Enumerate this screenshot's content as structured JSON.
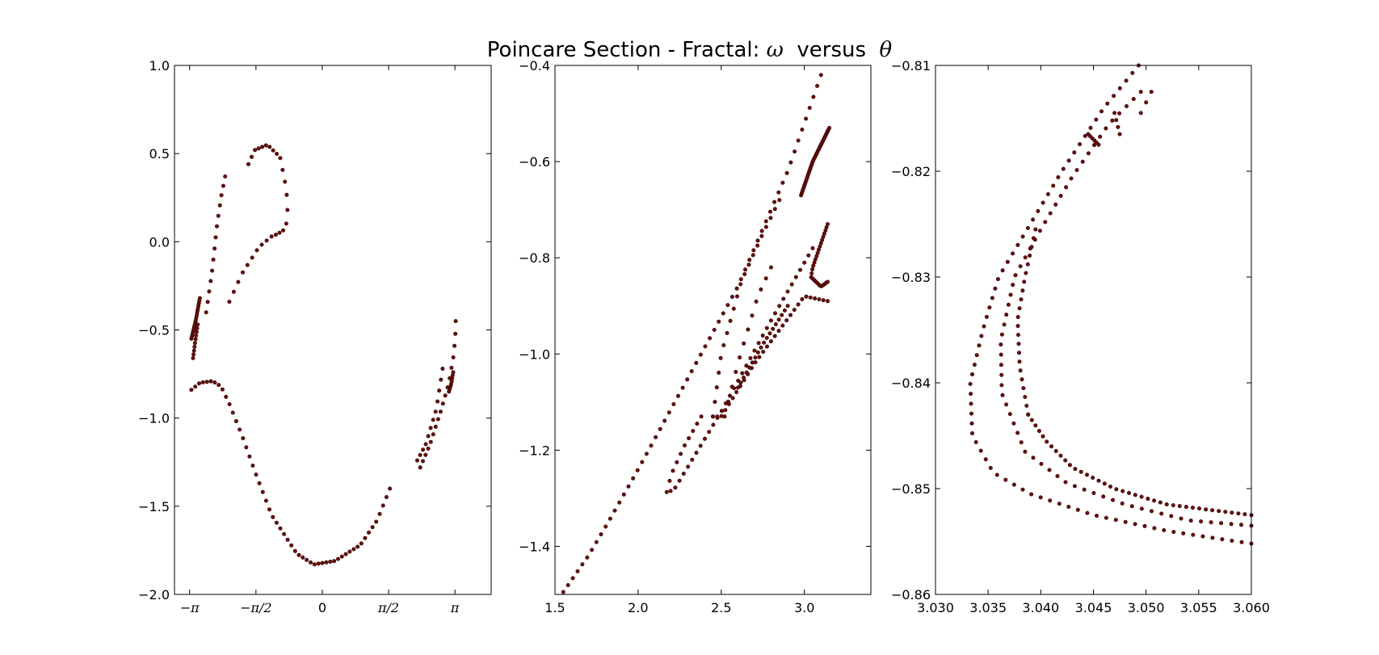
{
  "title": {
    "prefix": "Poincare Section - Fractal: ",
    "omega": "ω",
    "middle": "  versus  ",
    "theta": "θ"
  },
  "colors": {
    "marker_fill": "#6b0f0a",
    "marker_edge": "#2a0000",
    "axes": "#000000"
  },
  "chart_data": [
    {
      "type": "scatter",
      "xlim": [
        -3.5,
        4.0
      ],
      "ylim": [
        -2.0,
        1.0
      ],
      "xticks": [
        {
          "value": -3.14159,
          "label": "−π"
        },
        {
          "value": -1.5708,
          "label": "−π/2"
        },
        {
          "value": 0,
          "label": "0"
        },
        {
          "value": 1.5708,
          "label": "π/2"
        },
        {
          "value": 3.14159,
          "label": "π"
        }
      ],
      "yticks": [
        {
          "value": 1.0,
          "label": "1.0"
        },
        {
          "value": 0.5,
          "label": "0.5"
        },
        {
          "value": 0.0,
          "label": "0.0"
        },
        {
          "value": -0.5,
          "label": "−0.5"
        },
        {
          "value": -1.0,
          "label": "−1.0"
        },
        {
          "value": -1.5,
          "label": "−1.5"
        },
        {
          "value": -2.0,
          "label": "−2.0"
        }
      ],
      "polylines": [
        {
          "n": 55,
          "points": [
            [
              -3.1,
              -0.84
            ],
            [
              -2.9,
              -0.8
            ],
            [
              -2.6,
              -0.79
            ],
            [
              -2.4,
              -0.82
            ],
            [
              -2.2,
              -0.92
            ],
            [
              -1.9,
              -1.1
            ],
            [
              -1.6,
              -1.3
            ],
            [
              -1.2,
              -1.55
            ],
            [
              -0.6,
              -1.77
            ],
            [
              -0.2,
              -1.83
            ],
            [
              0.3,
              -1.81
            ],
            [
              0.9,
              -1.72
            ],
            [
              1.3,
              -1.58
            ],
            [
              1.6,
              -1.4
            ]
          ]
        },
        {
          "n": 18,
          "points": [
            [
              -3.1,
              -0.55
            ],
            [
              -3.0,
              -0.45
            ],
            [
              -2.9,
              -0.32
            ]
          ]
        },
        {
          "n": 14,
          "points": [
            [
              -2.75,
              -0.4
            ],
            [
              -2.6,
              -0.15
            ],
            [
              -2.5,
              0.08
            ],
            [
              -2.4,
              0.25
            ],
            [
              -2.3,
              0.37
            ]
          ]
        },
        {
          "n": 18,
          "points": [
            [
              -1.75,
              0.44
            ],
            [
              -1.6,
              0.52
            ],
            [
              -1.3,
              0.55
            ],
            [
              -1.0,
              0.48
            ],
            [
              -0.85,
              0.3
            ],
            [
              -0.82,
              0.15
            ],
            [
              -0.86,
              0.09
            ],
            [
              -0.94,
              0.06
            ],
            [
              -1.1,
              0.04
            ]
          ]
        },
        {
          "n": 10,
          "points": [
            [
              -1.2,
              0.03
            ],
            [
              -1.5,
              -0.03
            ],
            [
              -1.9,
              -0.18
            ],
            [
              -2.2,
              -0.34
            ]
          ]
        },
        {
          "n": 10,
          "points": [
            [
              -3.06,
              -0.66
            ],
            [
              -3.0,
              -0.55
            ],
            [
              -2.95,
              -0.47
            ]
          ]
        },
        {
          "n": 12,
          "points": [
            [
              2.25,
              -1.24
            ],
            [
              2.45,
              -1.15
            ],
            [
              2.7,
              -0.95
            ],
            [
              2.85,
              -0.72
            ]
          ]
        },
        {
          "n": 18,
          "points": [
            [
              2.32,
              -1.28
            ],
            [
              2.55,
              -1.15
            ],
            [
              2.82,
              -0.95
            ],
            [
              3.0,
              -0.8
            ],
            [
              3.1,
              -0.66
            ],
            [
              3.15,
              -0.55
            ],
            [
              3.16,
              -0.45
            ]
          ]
        },
        {
          "n": 8,
          "points": [
            [
              3.0,
              -0.85
            ],
            [
              3.06,
              -0.8
            ],
            [
              3.1,
              -0.74
            ]
          ]
        }
      ]
    },
    {
      "type": "scatter",
      "xlim": [
        1.5,
        3.4
      ],
      "ylim": [
        -1.5,
        -0.4
      ],
      "xticks": [
        {
          "value": 1.5,
          "label": "1.5"
        },
        {
          "value": 2.0,
          "label": "2.0"
        },
        {
          "value": 2.5,
          "label": "2.5"
        },
        {
          "value": 3.0,
          "label": "3.0"
        }
      ],
      "yticks": [
        {
          "value": -0.4,
          "label": "−0.4"
        },
        {
          "value": -0.6,
          "label": "−0.6"
        },
        {
          "value": -0.8,
          "label": "−0.8"
        },
        {
          "value": -1.0,
          "label": "−1.0"
        },
        {
          "value": -1.2,
          "label": "−1.2"
        },
        {
          "value": -1.4,
          "label": "−1.4"
        }
      ],
      "polylines": [
        {
          "n": 60,
          "points": [
            [
              1.55,
              -1.495
            ],
            [
              1.7,
              -1.42
            ],
            [
              1.82,
              -1.35
            ],
            [
              2.0,
              -1.24
            ],
            [
              2.3,
              -1.05
            ],
            [
              2.6,
              -0.86
            ],
            [
              2.9,
              -0.62
            ],
            [
              3.1,
              -0.42
            ]
          ]
        },
        {
          "n": 45,
          "points": [
            [
              2.38,
              -1.13
            ],
            [
              2.28,
              -1.19
            ],
            [
              2.2,
              -1.25
            ],
            [
              2.17,
              -1.29
            ],
            [
              2.22,
              -1.28
            ],
            [
              2.5,
              -1.12
            ],
            [
              2.8,
              -0.93
            ],
            [
              3.05,
              -0.78
            ]
          ]
        },
        {
          "n": 40,
          "points": [
            [
              2.98,
              -0.67
            ],
            [
              3.05,
              -0.6
            ],
            [
              3.15,
              -0.53
            ]
          ]
        },
        {
          "n": 30,
          "points": [
            [
              2.45,
              -1.13
            ],
            [
              2.5,
              -1.13
            ],
            [
              2.7,
              -1.02
            ],
            [
              3.0,
              -0.88
            ],
            [
              3.14,
              -0.89
            ]
          ]
        },
        {
          "n": 20,
          "points": [
            [
              2.45,
              -1.13
            ],
            [
              2.5,
              -1.0
            ],
            [
              2.62,
              -0.85
            ],
            [
              2.75,
              -0.75
            ],
            [
              2.85,
              -0.68
            ]
          ]
        },
        {
          "n": 28,
          "points": [
            [
              3.14,
              -0.73
            ],
            [
              3.05,
              -0.82
            ],
            [
              3.04,
              -0.84
            ],
            [
              3.1,
              -0.86
            ],
            [
              3.14,
              -0.85
            ]
          ]
        },
        {
          "n": 12,
          "points": [
            [
              2.52,
              -1.13
            ],
            [
              2.6,
              -1.02
            ],
            [
              2.72,
              -0.88
            ],
            [
              2.8,
              -0.82
            ]
          ]
        },
        {
          "n": 18,
          "points": [
            [
              2.6,
              -1.07
            ],
            [
              2.75,
              -0.98
            ],
            [
              2.9,
              -0.9
            ]
          ]
        }
      ]
    },
    {
      "type": "scatter",
      "xlim": [
        3.03,
        3.06
      ],
      "ylim": [
        -0.86,
        -0.81
      ],
      "xticks": [
        {
          "value": 3.03,
          "label": "3.030"
        },
        {
          "value": 3.035,
          "label": "3.035"
        },
        {
          "value": 3.04,
          "label": "3.040"
        },
        {
          "value": 3.045,
          "label": "3.045"
        },
        {
          "value": 3.05,
          "label": "3.050"
        },
        {
          "value": 3.055,
          "label": "3.055"
        },
        {
          "value": 3.06,
          "label": "3.060"
        }
      ],
      "yticks": [
        {
          "value": -0.81,
          "label": "−0.81"
        },
        {
          "value": -0.82,
          "label": "−0.82"
        },
        {
          "value": -0.83,
          "label": "−0.83"
        },
        {
          "value": -0.84,
          "label": "−0.84"
        },
        {
          "value": -0.85,
          "label": "−0.85"
        },
        {
          "value": -0.86,
          "label": "−0.86"
        }
      ],
      "polylines": [
        {
          "n": 75,
          "points": [
            [
              3.0493,
              -0.81
            ],
            [
              3.046,
              -0.814
            ],
            [
              3.042,
              -0.82
            ],
            [
              3.039,
              -0.825
            ],
            [
              3.036,
              -0.83
            ],
            [
              3.0345,
              -0.835
            ],
            [
              3.0333,
              -0.84
            ],
            [
              3.0335,
              -0.845
            ],
            [
              3.0355,
              -0.8485
            ],
            [
              3.039,
              -0.8505
            ],
            [
              3.045,
              -0.8525
            ],
            [
              3.052,
              -0.854
            ],
            [
              3.06,
              -0.8552
            ]
          ]
        },
        {
          "n": 65,
          "points": [
            [
              3.0495,
              -0.8125
            ],
            [
              3.0465,
              -0.8155
            ],
            [
              3.043,
              -0.8205
            ],
            [
              3.04,
              -0.8255
            ],
            [
              3.0375,
              -0.83
            ],
            [
              3.0362,
              -0.836
            ],
            [
              3.0363,
              -0.841
            ],
            [
              3.0385,
              -0.8465
            ],
            [
              3.0425,
              -0.8495
            ],
            [
              3.048,
              -0.8515
            ],
            [
              3.054,
              -0.853
            ],
            [
              3.06,
              -0.8535
            ]
          ]
        },
        {
          "n": 40,
          "points": [
            [
              3.0388,
              -0.843
            ],
            [
              3.0405,
              -0.8455
            ],
            [
              3.043,
              -0.848
            ],
            [
              3.047,
              -0.85
            ],
            [
              3.052,
              -0.8515
            ],
            [
              3.06,
              -0.8525
            ]
          ]
        },
        {
          "n": 22,
          "points": [
            [
              3.0395,
              -0.8255
            ],
            [
              3.0385,
              -0.83
            ],
            [
              3.0378,
              -0.834
            ],
            [
              3.038,
              -0.8385
            ],
            [
              3.0388,
              -0.843
            ]
          ]
        },
        {
          "n": 6,
          "points": [
            [
              3.0445,
              -0.8165
            ],
            [
              3.0455,
              -0.8175
            ]
          ]
        },
        {
          "n": 4,
          "points": [
            [
              3.047,
              -0.8145
            ],
            [
              3.0475,
              -0.8165
            ]
          ]
        },
        {
          "n": 3,
          "points": [
            [
              3.0495,
              -0.8145
            ],
            [
              3.0505,
              -0.8125
            ]
          ]
        },
        {
          "n": 1,
          "points": [
            [
              3.052,
              -0.8095
            ]
          ]
        }
      ]
    }
  ]
}
